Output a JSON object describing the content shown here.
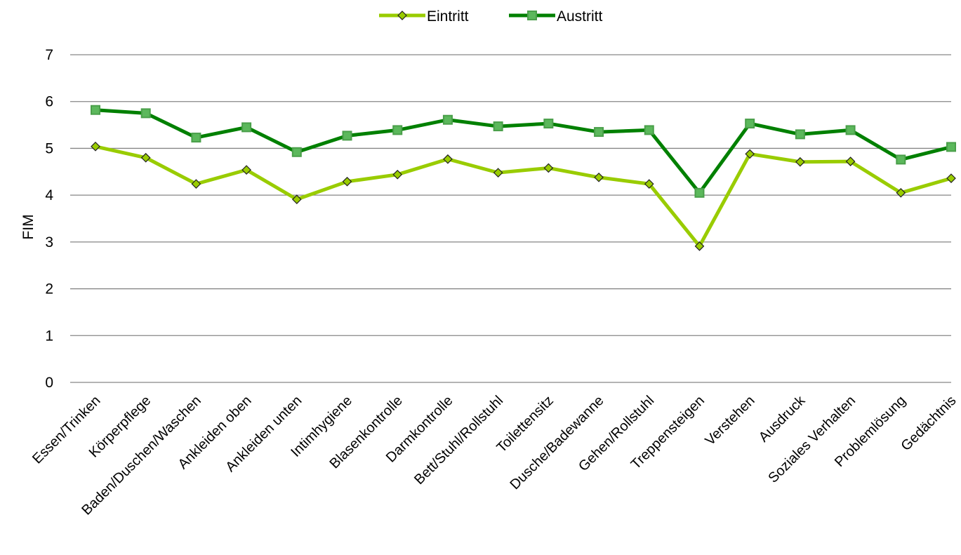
{
  "chart_data": {
    "type": "line",
    "ylabel": "FIM",
    "ylim": [
      0,
      7
    ],
    "yticks": [
      0,
      1,
      2,
      3,
      4,
      5,
      6,
      7
    ],
    "grid": true,
    "legend_position": "top-center",
    "categories": [
      "Essen/Trinken",
      "Körperpflege",
      "Baden/Duschen/Waschen",
      "Ankleiden oben",
      "Ankleiden unten",
      "Intimhygiene",
      "Blasenkontrolle",
      "Darmkontrolle",
      "Bett/Stuhl/Rollstuhl",
      "Toilettensitz",
      "Dusche/Badewanne",
      "Gehen/Rollstuhl",
      "Treppensteigen",
      "Verstehen",
      "Ausdruck",
      "Soziales Verhalten",
      "Problemlösung",
      "Gedächtnis"
    ],
    "series": [
      {
        "name": "Eintritt",
        "color": "#99cc00",
        "marker_fill": "#99cc00",
        "marker": "diamond",
        "values": [
          5.04,
          4.8,
          4.24,
          4.54,
          3.91,
          4.29,
          4.44,
          4.77,
          4.48,
          4.58,
          4.38,
          4.24,
          2.91,
          4.88,
          4.71,
          4.72,
          4.05,
          4.36
        ]
      },
      {
        "name": "Austritt",
        "color": "#008000",
        "marker_fill": "#5cb85c",
        "marker": "square",
        "values": [
          5.82,
          5.75,
          5.23,
          5.45,
          4.92,
          5.27,
          5.39,
          5.61,
          5.47,
          5.53,
          5.35,
          5.39,
          4.05,
          5.53,
          5.3,
          5.39,
          4.76,
          5.03
        ]
      }
    ]
  }
}
